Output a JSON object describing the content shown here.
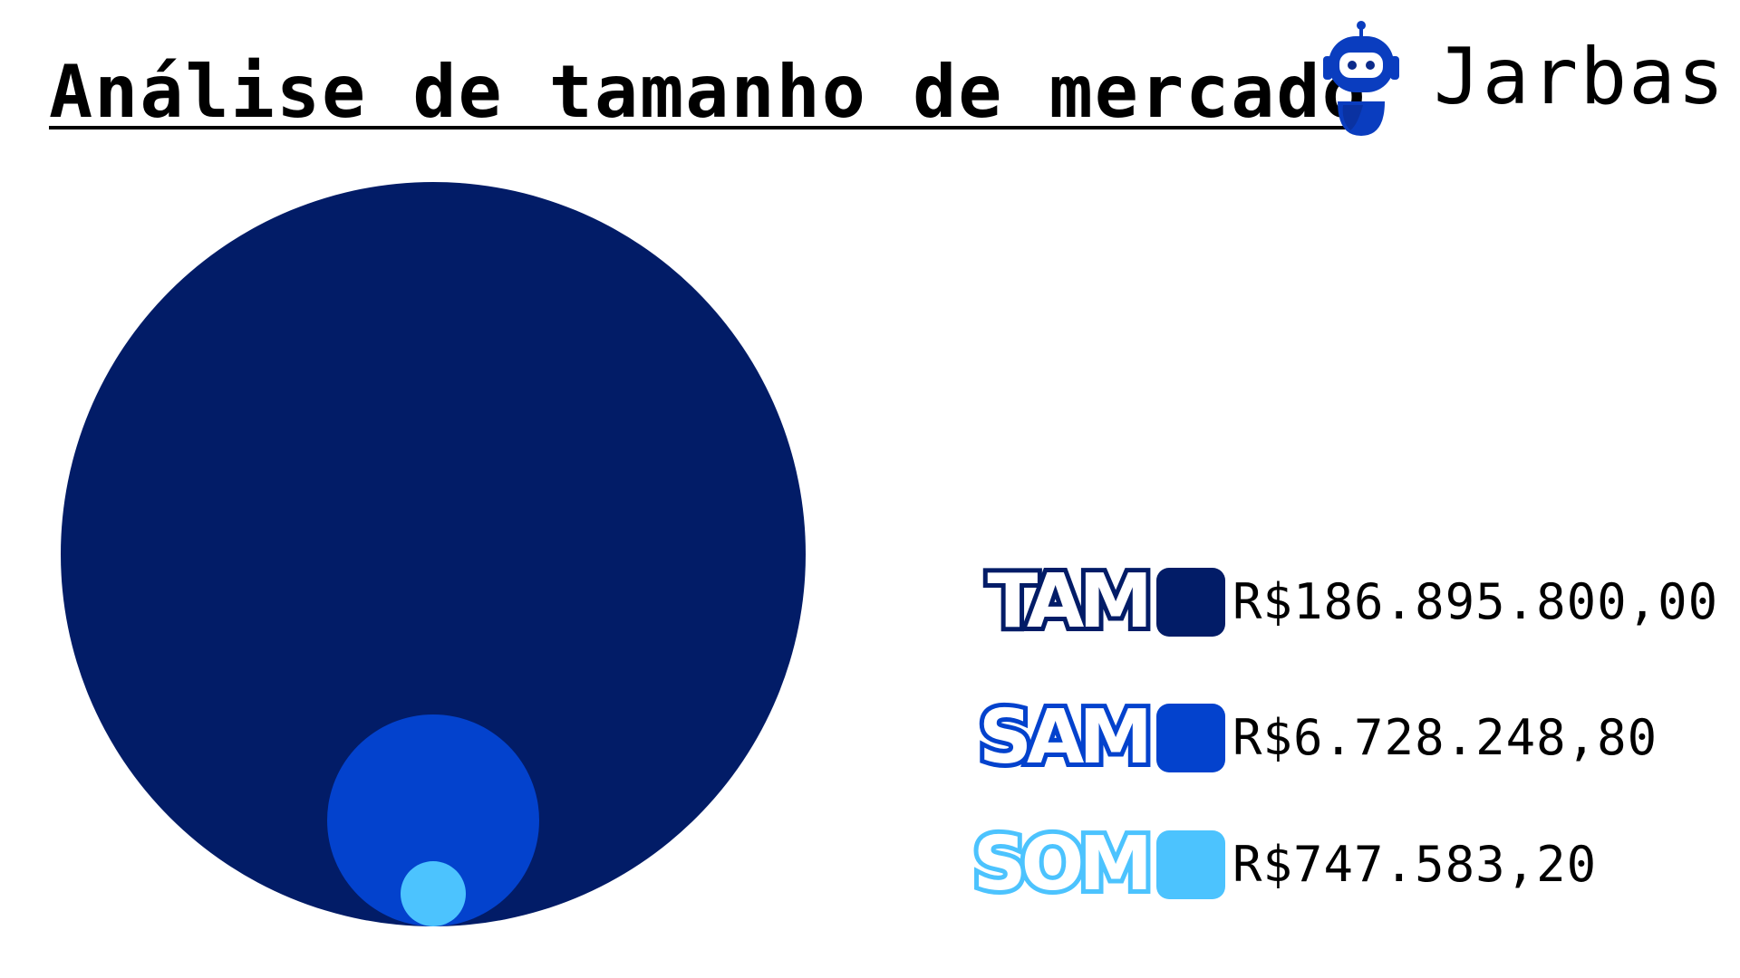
{
  "title": "Análise de tamanho de mercado",
  "brand": {
    "name": "Jarbas",
    "logo_icon": "robot-mascot-icon",
    "logo_colors": [
      "#0a3dbf",
      "#0b2a8a"
    ]
  },
  "chart_data": {
    "type": "nested-circles",
    "title": "Análise de tamanho de mercado",
    "series": [
      {
        "name": "TAM",
        "value": 186895800.0,
        "label": "R$186.895.800,00",
        "color": "#021c67"
      },
      {
        "name": "SAM",
        "value": 6728248.8,
        "label": "R$6.728.248,80",
        "color": "#0342cd"
      },
      {
        "name": "SOM",
        "value": 747583.2,
        "label": "R$747.583,20",
        "color": "#4cc3fe"
      }
    ],
    "legend_placement": "right",
    "grid": false
  }
}
